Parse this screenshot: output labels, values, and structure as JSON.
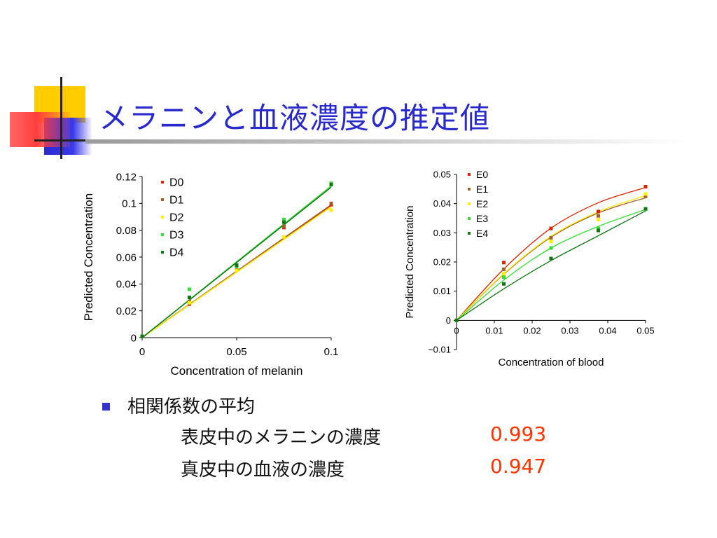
{
  "slide": {
    "title": "メラニンと血液濃度の推定値",
    "bullet": "相関係数の平均",
    "sub_items": [
      {
        "label": "表皮中のメラニンの濃度",
        "value": "0.993"
      },
      {
        "label": "真皮中の血液の濃度",
        "value": "0.947"
      }
    ]
  },
  "colors": {
    "title": "#2a2acc",
    "value": "#ff3300",
    "bullet": "#3333cc"
  },
  "chart_data": [
    {
      "type": "scatter",
      "xlabel": "Concentration of melanin",
      "ylabel": "Predicted Concentration",
      "xlim": [
        0,
        0.1
      ],
      "ylim": [
        0,
        0.12
      ],
      "xticks": [
        "0",
        "0.05",
        "0.1"
      ],
      "xtick_values": [
        0,
        0.05,
        0.1
      ],
      "yticks": [
        "0",
        "0.02",
        "0.04",
        "0.06",
        "0.08",
        "0.1",
        "0.12"
      ],
      "ytick_values": [
        0,
        0.02,
        0.04,
        0.06,
        0.08,
        0.1,
        0.12
      ],
      "legend_position": "top-left",
      "fit": "linear",
      "x": [
        0,
        0.025,
        0.05,
        0.075,
        0.1
      ],
      "series": [
        {
          "name": "D0",
          "color": "#dd2200",
          "values": [
            0.001,
            0.025,
            0.051,
            0.082,
            0.099
          ],
          "fit_line": [
            0,
            0.0985
          ]
        },
        {
          "name": "D1",
          "color": "#a0602a",
          "values": [
            0.001,
            0.027,
            0.052,
            0.083,
            0.1
          ],
          "fit_line": [
            0,
            0.099
          ]
        },
        {
          "name": "D2",
          "color": "#ffee00",
          "values": [
            0.001,
            0.026,
            0.05,
            0.075,
            0.095
          ],
          "fit_line": [
            0,
            0.0975
          ]
        },
        {
          "name": "D3",
          "color": "#33dd33",
          "values": [
            0.001,
            0.036,
            0.053,
            0.088,
            0.115
          ],
          "fit_line": [
            0,
            0.113
          ]
        },
        {
          "name": "D4",
          "color": "#117711",
          "values": [
            0.001,
            0.03,
            0.054,
            0.086,
            0.114
          ],
          "fit_line": [
            0,
            0.112
          ]
        }
      ]
    },
    {
      "type": "scatter",
      "xlabel": "Concentration of blood",
      "ylabel": "Predicted Concentration",
      "xlim": [
        0,
        0.05
      ],
      "ylim": [
        -0.01,
        0.05
      ],
      "xticks": [
        "0",
        "0.01",
        "0.02",
        "0.03",
        "0.04",
        "0.05"
      ],
      "xtick_values": [
        0,
        0.01,
        0.02,
        0.03,
        0.04,
        0.05
      ],
      "yticks": [
        "−0.01",
        "0",
        "0.01",
        "0.02",
        "0.03",
        "0.04",
        "0.05"
      ],
      "ytick_values": [
        -0.01,
        0,
        0.01,
        0.02,
        0.03,
        0.04,
        0.05
      ],
      "legend_position": "top-left",
      "fit": "polynomial",
      "x": [
        0,
        0.0125,
        0.025,
        0.0375,
        0.05
      ],
      "series": [
        {
          "name": "E0",
          "color": "#dd2200",
          "values": [
            0.0,
            0.0198,
            0.0315,
            0.0373,
            0.0458
          ],
          "fit_curve": [
            0.0,
            0.0176,
            0.0316,
            0.0403,
            0.0455
          ]
        },
        {
          "name": "E1",
          "color": "#a0602a",
          "values": [
            0.0,
            0.0175,
            0.0283,
            0.0358,
            0.0425
          ],
          "fit_curve": [
            0.0,
            0.0158,
            0.0285,
            0.0368,
            0.042
          ]
        },
        {
          "name": "E2",
          "color": "#ffee00",
          "values": [
            0.0,
            0.016,
            0.027,
            0.0345,
            0.0433
          ],
          "fit_curve": [
            0.0,
            0.016,
            0.0288,
            0.0372,
            0.0428
          ]
        },
        {
          "name": "E3",
          "color": "#33dd33",
          "values": [
            0.0,
            0.0148,
            0.0248,
            0.0315,
            0.0382
          ],
          "fit_curve": [
            0.0,
            0.0138,
            0.0248,
            0.0322,
            0.038
          ]
        },
        {
          "name": "E4",
          "color": "#117711",
          "values": [
            0.0,
            0.0125,
            0.0212,
            0.0308,
            0.0382
          ],
          "fit_curve": [
            0.0,
            0.0108,
            0.0205,
            0.029,
            0.0375
          ]
        }
      ]
    }
  ]
}
